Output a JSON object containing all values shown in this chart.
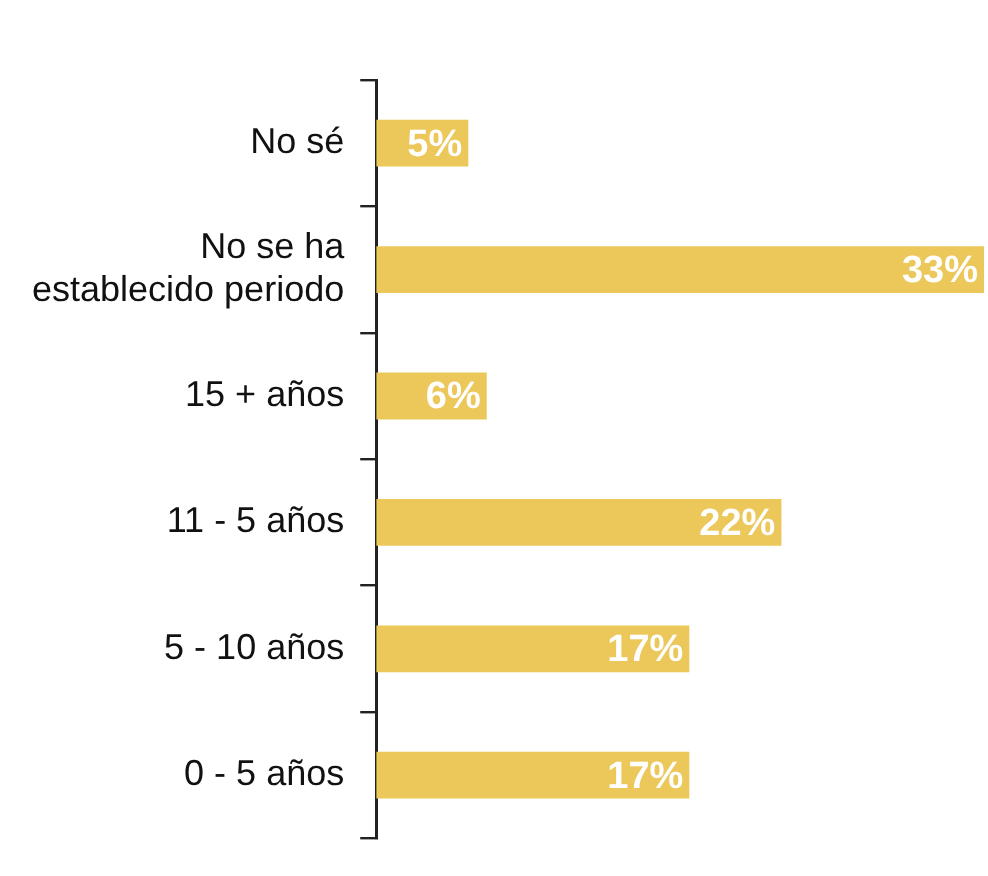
{
  "chart_data": {
    "type": "bar",
    "orientation": "horizontal",
    "categories": [
      "No sé",
      "No se ha\nestablecido periodo",
      "15 + años",
      "11 - 5 años",
      "5 - 10 años",
      "0 - 5 años"
    ],
    "values": [
      5,
      33,
      6,
      22,
      17,
      17
    ],
    "value_labels": [
      "5%",
      "33%",
      "6%",
      "22%",
      "17%",
      "17%"
    ],
    "color": "#ecc75a",
    "xlim": [
      0,
      33
    ],
    "tick_labels": "y"
  }
}
